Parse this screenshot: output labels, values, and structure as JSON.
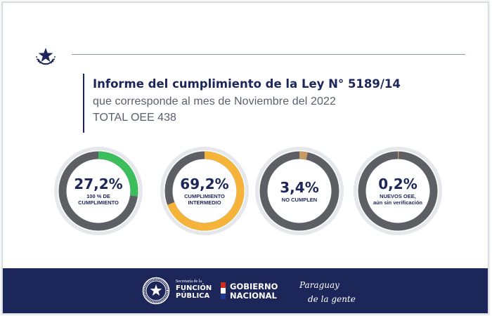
{
  "header": {
    "title": "Informe del cumplimiento de la Ley N° 5189/14",
    "subtitle": "que  corresponde al mes de Noviembre del 2022",
    "total": "TOTAL OEE 438"
  },
  "gauges": [
    {
      "value": "27,2%",
      "label": "100 % DE CUMPLIMIENTO",
      "fraction": 0.272,
      "color": "#3dbe5c"
    },
    {
      "value": "69,2%",
      "label": "CUMPLIMIENTO INTERMEDIO",
      "fraction": 0.692,
      "color": "#f6b33a"
    },
    {
      "value": "3,4%",
      "label": "NO CUMPLEN",
      "fraction": 0.034,
      "color": "#c59a63"
    },
    {
      "value": "0,2%",
      "label": "NUEVOS OEE,\naún sin verificación",
      "fraction": 0.002,
      "color": "#c59a63"
    }
  ],
  "colors": {
    "navy": "#1c2659",
    "track": "#5d5f64",
    "ring_outer": "#e6e7ea"
  },
  "footer": {
    "sfp_small": "Secretaría de la",
    "sfp_line1": "FUNCIÓN",
    "sfp_line2": "PÚBLICA",
    "gob_line1": "GOBIERNO",
    "gob_line2": "NACIONAL",
    "brand_line1": "Paraguay",
    "brand_line2": "de la gente"
  },
  "icons": {
    "top": "star-seal-icon",
    "footer": "national-seal-icon"
  }
}
